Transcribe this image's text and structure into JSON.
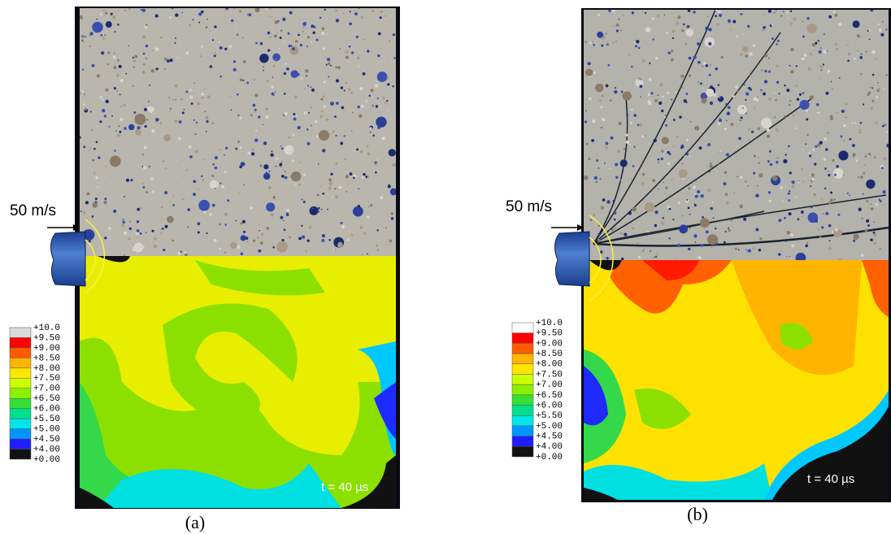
{
  "panels": [
    {
      "label": "(a)",
      "velocity": "50 m/s",
      "time": "t = 40 µs"
    },
    {
      "label": "(b)",
      "velocity": "50 m/s",
      "time": "t = 40 µs"
    }
  ],
  "legend": {
    "labels": [
      "+10.0",
      "+9.50",
      "+9.00",
      "+8.50",
      "+8.00",
      "+7.50",
      "+7.00",
      "+6.50",
      "+6.00",
      "+5.50",
      "+5.00",
      "+4.50",
      "+4.00",
      "+0.00"
    ],
    "colors": [
      "#d9d9d9",
      "#ff0000",
      "#ff5a00",
      "#ffb400",
      "#ffe600",
      "#ccff00",
      "#8cf000",
      "#33e033",
      "#00e08c",
      "#00e6e6",
      "#0096ff",
      "#1e1eff",
      "#111111"
    ]
  }
}
